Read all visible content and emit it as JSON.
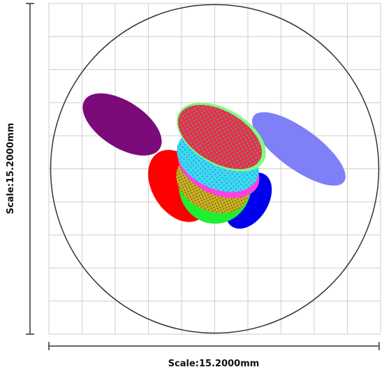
{
  "view": {
    "x_scale_label": "Scale:15.2000mm",
    "y_scale_label": "Scale:15.2000mm"
  }
}
